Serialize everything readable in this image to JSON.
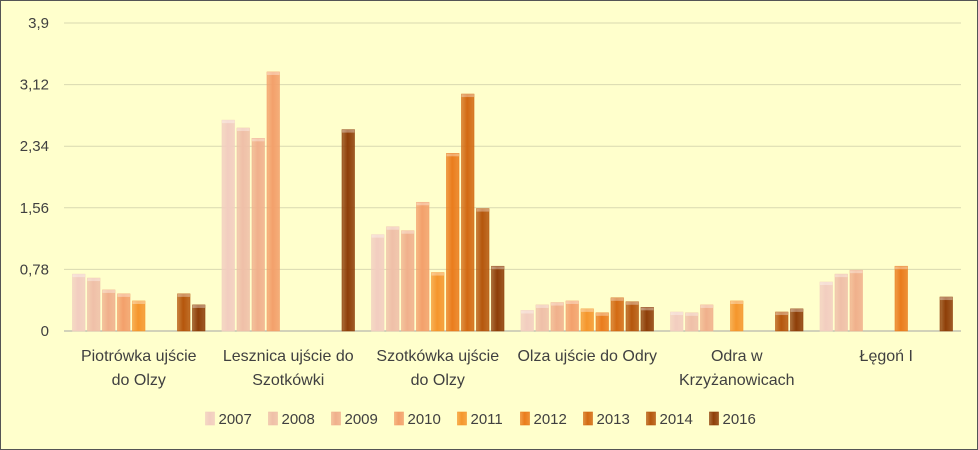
{
  "chart_data": {
    "type": "bar",
    "categories": [
      [
        "Piotrówka ujście",
        "do Olzy"
      ],
      [
        "Lesznica ujście do",
        "Szotkówki"
      ],
      [
        "Szotkówka ujście",
        "do Olzy"
      ],
      [
        "Olza ujście do Odry"
      ],
      [
        "Odra w",
        "Krzyżanowicach"
      ],
      [
        "Łęgoń I"
      ]
    ],
    "yticks": [
      "0",
      "0,78",
      "1,56",
      "2,34",
      "3,12",
      "3,9"
    ],
    "ylim": [
      0,
      3.9
    ],
    "grid": true,
    "legend_position": "bottom",
    "series": [
      {
        "name": "2007",
        "color": "#f2cdc0",
        "values": [
          0.72,
          2.67,
          1.22,
          0.26,
          0.24,
          0.62
        ]
      },
      {
        "name": "2008",
        "color": "#efbfa8",
        "values": [
          0.67,
          2.57,
          1.32,
          0.33,
          0.23,
          0.72
        ]
      },
      {
        "name": "2009",
        "color": "#f0b08c",
        "values": [
          0.52,
          2.44,
          1.27,
          0.36,
          0.33,
          0.77
        ]
      },
      {
        "name": "2010",
        "color": "#f3a06b",
        "values": [
          0.47,
          3.28,
          1.63,
          0.38,
          null,
          null
        ]
      },
      {
        "name": "2011",
        "color": "#f5962c",
        "values": [
          0.38,
          null,
          0.74,
          0.28,
          0.38,
          null
        ]
      },
      {
        "name": "2012",
        "color": "#ea7c1c",
        "values": [
          null,
          null,
          2.25,
          0.23,
          null,
          0.82
        ]
      },
      {
        "name": "2013",
        "color": "#d36a12",
        "values": [
          null,
          null,
          3.0,
          0.42,
          null,
          null
        ]
      },
      {
        "name": "2014",
        "color": "#b5560c",
        "values": [
          0.47,
          null,
          1.55,
          0.37,
          0.24,
          null
        ]
      },
      {
        "name": "2016",
        "color": "#8e3e08",
        "values": [
          0.33,
          2.55,
          0.82,
          0.3,
          0.28,
          0.43
        ]
      }
    ]
  }
}
